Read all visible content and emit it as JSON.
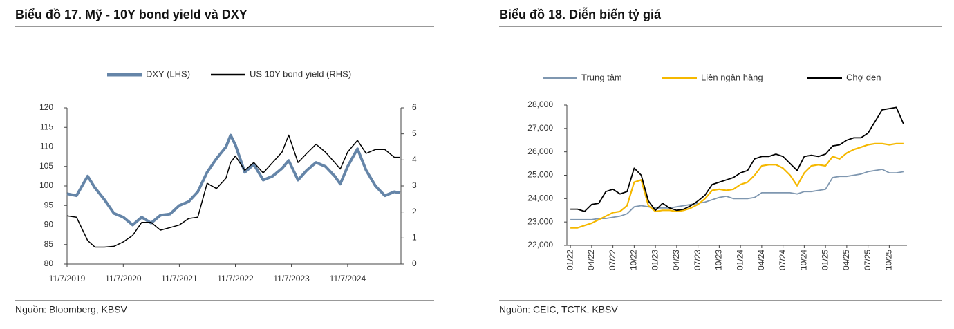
{
  "chart_data": [
    {
      "type": "line",
      "title": "Biểu đồ 17. Mỹ - 10Y bond yield và DXY",
      "source": "Nguồn: Bloomberg, KBSV",
      "x": [
        "2019-11-07",
        "2020-01-07",
        "2020-03-20",
        "2020-05-07",
        "2020-07-07",
        "2020-09-07",
        "2020-11-07",
        "2021-01-07",
        "2021-03-07",
        "2021-05-07",
        "2021-07-07",
        "2021-09-07",
        "2021-11-07",
        "2022-01-07",
        "2022-03-07",
        "2022-05-07",
        "2022-07-07",
        "2022-09-07",
        "2022-10-07",
        "2022-11-07",
        "2023-01-07",
        "2023-03-07",
        "2023-05-07",
        "2023-07-07",
        "2023-09-07",
        "2023-10-20",
        "2023-12-20",
        "2024-02-15",
        "2024-04-15",
        "2024-06-15",
        "2024-08-15",
        "2024-09-20",
        "2024-11-07",
        "2025-01-10",
        "2025-03-07",
        "2025-05-07",
        "2025-07-07",
        "2025-09-07",
        "2025-10-15"
      ],
      "series": [
        {
          "name": "DXY (LHS)",
          "color": "#6585a8",
          "width": 4,
          "axis": "y",
          "values": [
            98,
            97.5,
            102.5,
            99.5,
            96.5,
            93,
            92,
            90,
            92,
            90.5,
            92.5,
            92.8,
            95,
            96,
            98.5,
            103.5,
            107,
            110,
            113,
            110.5,
            103.5,
            105.5,
            101.5,
            102.5,
            104.5,
            106.5,
            101.5,
            104,
            106,
            105,
            102.5,
            100.5,
            105,
            109.5,
            104,
            100,
            97.5,
            98.5,
            98.2
          ]
        },
        {
          "name": "US 10Y bond yield (RHS)",
          "color": "#000000",
          "width": 1.5,
          "axis": "y2",
          "values": [
            1.85,
            1.8,
            0.9,
            0.65,
            0.65,
            0.68,
            0.85,
            1.1,
            1.6,
            1.6,
            1.3,
            1.4,
            1.5,
            1.75,
            1.8,
            3.1,
            2.9,
            3.3,
            3.9,
            4.15,
            3.6,
            3.9,
            3.5,
            3.9,
            4.3,
            4.95,
            3.9,
            4.25,
            4.6,
            4.3,
            3.9,
            3.65,
            4.3,
            4.75,
            4.25,
            4.4,
            4.4,
            4.1,
            4.1
          ]
        }
      ],
      "xlim": [
        "2019-11-07",
        "2025-10-20"
      ],
      "xticks": [
        {
          "value": "2019-11-07",
          "label": "11/7/2019"
        },
        {
          "value": "2020-11-07",
          "label": "11/7/2020"
        },
        {
          "value": "2021-11-07",
          "label": "11/7/2021"
        },
        {
          "value": "2022-11-07",
          "label": "11/7/2022"
        },
        {
          "value": "2023-11-07",
          "label": "11/7/2023"
        },
        {
          "value": "2024-11-07",
          "label": "11/7/2024"
        }
      ],
      "ylim": [
        80,
        120
      ],
      "yticks": [
        80,
        85,
        90,
        95,
        100,
        105,
        110,
        115,
        120
      ],
      "y2lim": [
        0,
        6
      ],
      "y2ticks": [
        0,
        1,
        2,
        3,
        4,
        5,
        6
      ]
    },
    {
      "type": "line",
      "title": "Biểu đồ 18. Diễn biến tỷ giá",
      "source": "Nguồn: CEIC, TCTK, KBSV",
      "categories": [
        "01/22",
        null,
        null,
        "04/22",
        null,
        null,
        "07/22",
        null,
        null,
        "10/22",
        null,
        null,
        "01/23",
        null,
        null,
        "04/23",
        null,
        null,
        "07/23",
        null,
        null,
        "10/23",
        null,
        null,
        "01/24",
        null,
        null,
        "04/24",
        null,
        null,
        "07/24",
        null,
        null,
        "10/24",
        null,
        null,
        "01/25",
        null,
        null,
        "04/25",
        null,
        null,
        "07/25",
        null,
        null,
        "10/25",
        null,
        null
      ],
      "series": [
        {
          "name": "Trung tâm",
          "color": "#7f97b0",
          "width": 1.8,
          "values": [
            23100,
            23100,
            23100,
            23100,
            23150,
            23150,
            23200,
            23250,
            23350,
            23650,
            23700,
            23650,
            23600,
            23600,
            23600,
            23650,
            23700,
            23750,
            23800,
            23850,
            23950,
            24050,
            24100,
            24000,
            24000,
            24000,
            24050,
            24250,
            24250,
            24250,
            24250,
            24250,
            24200,
            24300,
            24300,
            24350,
            24400,
            24900,
            24950,
            24950,
            25000,
            25050,
            25150,
            25200,
            25250,
            25100,
            25100,
            25150
          ]
        },
        {
          "name": "Liên ngân hàng",
          "color": "#f5b800",
          "width": 2.2,
          "values": [
            22750,
            22750,
            22850,
            22950,
            23100,
            23250,
            23400,
            23450,
            23700,
            24700,
            24800,
            23700,
            23450,
            23500,
            23500,
            23450,
            23500,
            23600,
            23750,
            24000,
            24350,
            24400,
            24350,
            24400,
            24600,
            24700,
            25000,
            25400,
            25450,
            25450,
            25300,
            25000,
            24550,
            25100,
            25400,
            25450,
            25400,
            25800,
            25700,
            25950,
            26100,
            26200,
            26300,
            26350,
            26350,
            26300,
            26350,
            26350
          ]
        },
        {
          "name": "Chợ đen",
          "color": "#000000",
          "width": 1.8,
          "values": [
            23550,
            23550,
            23450,
            23750,
            23800,
            24300,
            24400,
            24200,
            24300,
            25300,
            25000,
            23900,
            23500,
            23800,
            23600,
            23500,
            23550,
            23700,
            23900,
            24150,
            24600,
            24700,
            24800,
            24900,
            25100,
            25200,
            25700,
            25800,
            25800,
            25900,
            25800,
            25500,
            25200,
            25800,
            25850,
            25800,
            25900,
            26250,
            26300,
            26500,
            26600,
            26600,
            26800,
            27300,
            27800,
            27850,
            27900,
            27200
          ]
        }
      ],
      "ylim": [
        22000,
        28000
      ],
      "yticks": [
        {
          "value": 22000,
          "label": "22,000"
        },
        {
          "value": 23000,
          "label": "23,000"
        },
        {
          "value": 24000,
          "label": "24,000"
        },
        {
          "value": 25000,
          "label": "25,000"
        },
        {
          "value": 26000,
          "label": "26,000"
        },
        {
          "value": 27000,
          "label": "27,000"
        },
        {
          "value": 28000,
          "label": "28,000"
        }
      ]
    }
  ]
}
